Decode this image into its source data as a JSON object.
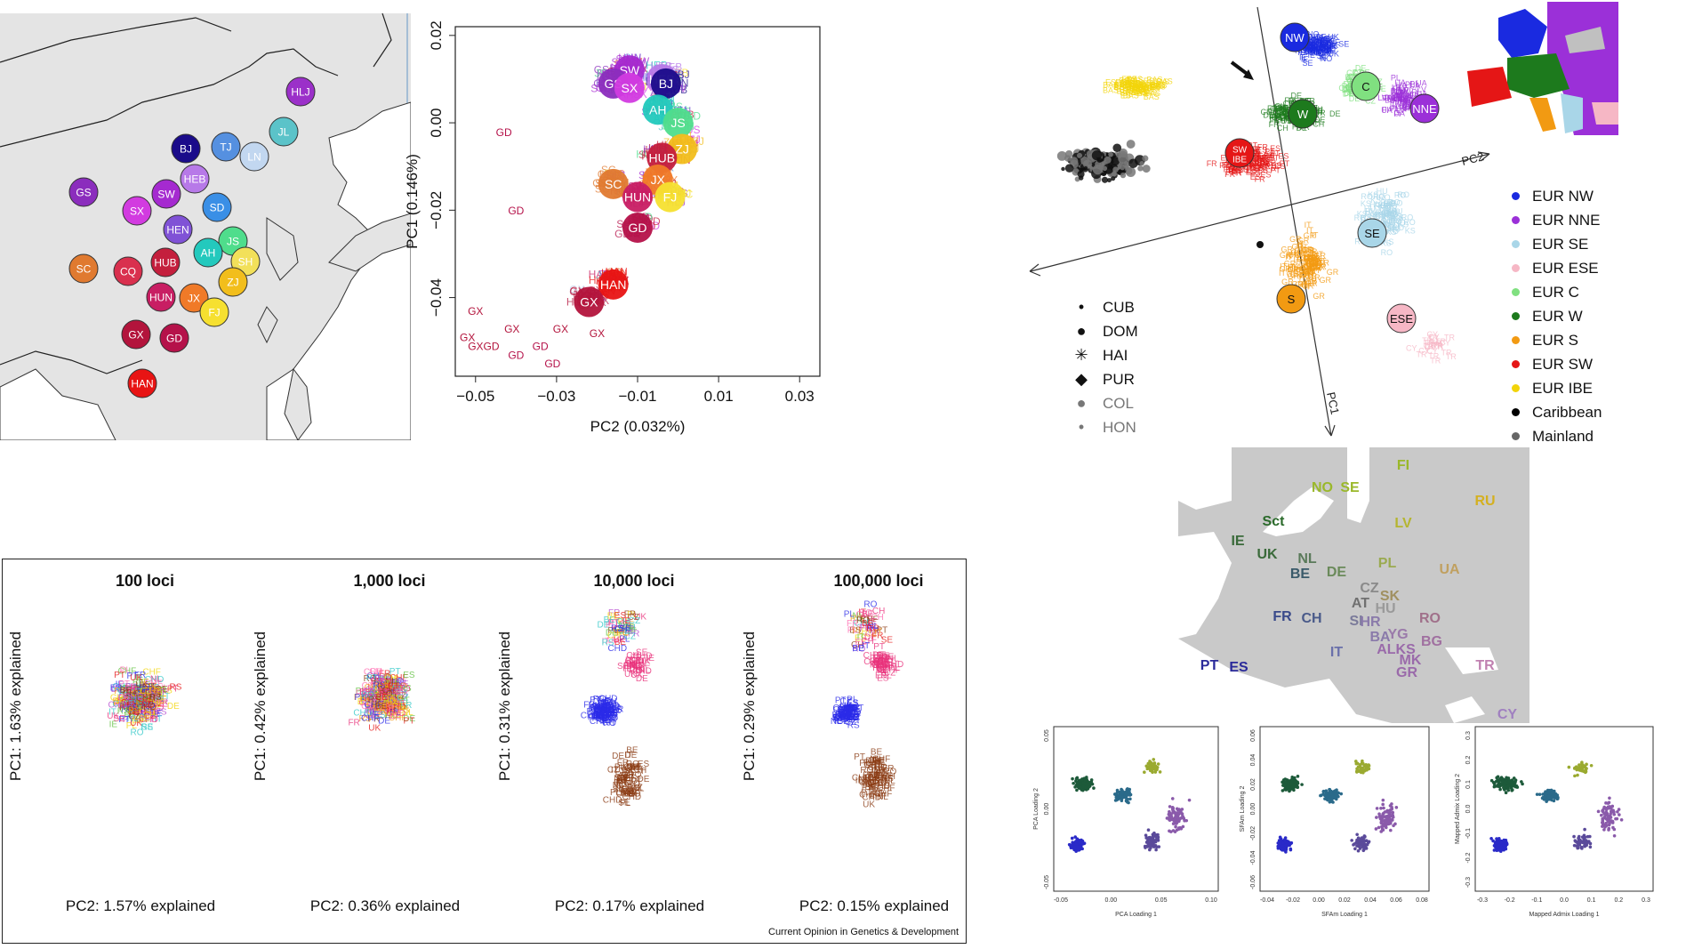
{
  "panels": {
    "china_map": {
      "provinces": [
        "HLJ",
        "JL",
        "TJ",
        "LN",
        "BJ",
        "HEB",
        "GS",
        "SW",
        "SX",
        "SD",
        "HEN",
        "JS",
        "AH",
        "SH",
        "SC",
        "CQ",
        "HUB",
        "ZJ",
        "JX",
        "HUN",
        "FJ",
        "GX",
        "GD",
        "HAN"
      ],
      "colors": {
        "HLJ": "#9b30c9",
        "JL": "#5bc3c9",
        "TJ": "#5590e0",
        "LN": "#c2d7f0",
        "BJ": "#1a0b8a",
        "HEB": "#b779e8",
        "GS": "#8b2dbd",
        "SW": "#a52ad0",
        "SX": "#d23be0",
        "SD": "#3a8fe6",
        "HEN": "#8052d6",
        "JS": "#4fdd8c",
        "AH": "#23c9bd",
        "SH": "#f2e05a",
        "SC": "#e07a30",
        "CQ": "#d9304e",
        "HUB": "#c41f3d",
        "ZJ": "#f2be1c",
        "JX": "#f07a28",
        "HUN": "#c81e63",
        "FJ": "#f6e030",
        "GX": "#b3143c",
        "GD": "#b5124a",
        "HAN": "#e81414"
      }
    },
    "china_pca": {
      "chart_data": {
        "type": "scatter",
        "xlabel": "PC2 (0.032%)",
        "ylabel": "PC1 (0.146%)",
        "xlim": [
          -0.055,
          0.035
        ],
        "ylim": [
          -0.058,
          0.022
        ],
        "xticks": [
          "−0.05",
          "−0.03",
          "−0.01",
          "0.01",
          "0.03"
        ],
        "xtick_values": [
          -0.05,
          -0.03,
          -0.01,
          0.01,
          0.03
        ],
        "yticks": [
          "0.02",
          "0.00",
          "−0.02",
          "−0.04"
        ],
        "ytick_values": [
          0.02,
          0.0,
          -0.02,
          -0.04
        ],
        "centroids": [
          {
            "label": "SW",
            "x": -0.012,
            "y": 0.012
          },
          {
            "label": "GS",
            "x": -0.016,
            "y": 0.009
          },
          {
            "label": "SX",
            "x": -0.012,
            "y": 0.008
          },
          {
            "label": "HEB",
            "x": -0.004,
            "y": 0.01
          },
          {
            "label": "BJ",
            "x": -0.003,
            "y": 0.009
          },
          {
            "label": "AH",
            "x": -0.005,
            "y": 0.003
          },
          {
            "label": "JS",
            "x": 0.0,
            "y": 0.0
          },
          {
            "label": "ZJ",
            "x": 0.001,
            "y": -0.006
          },
          {
            "label": "HUB",
            "x": -0.004,
            "y": -0.008
          },
          {
            "label": "JX",
            "x": -0.005,
            "y": -0.013
          },
          {
            "label": "SC",
            "x": -0.016,
            "y": -0.014
          },
          {
            "label": "HUN",
            "x": -0.01,
            "y": -0.017
          },
          {
            "label": "FJ",
            "x": -0.002,
            "y": -0.017
          },
          {
            "label": "GD",
            "x": -0.01,
            "y": -0.024
          },
          {
            "label": "HAN",
            "x": -0.016,
            "y": -0.037
          },
          {
            "label": "GX",
            "x": -0.022,
            "y": -0.041
          }
        ],
        "scatter_labels": [
          "SW",
          "SX",
          "GS",
          "LI",
          "HEN",
          "HLJ",
          "JL",
          "LN",
          "TJ",
          "SD",
          "JS",
          "SH",
          "ZJ",
          "AH",
          "SC",
          "HUB",
          "JX",
          "HUN",
          "GD",
          "GX",
          "CQ",
          "FJ"
        ],
        "extra_points": [
          {
            "label": "GD",
            "x": -0.043,
            "y": -0.003
          },
          {
            "label": "GD",
            "x": -0.04,
            "y": -0.021
          },
          {
            "label": "GX",
            "x": -0.05,
            "y": -0.044
          },
          {
            "label": "GX",
            "x": -0.052,
            "y": -0.05
          },
          {
            "label": "GXGD",
            "x": -0.048,
            "y": -0.052
          },
          {
            "label": "GD",
            "x": -0.04,
            "y": -0.054
          },
          {
            "label": "GD",
            "x": -0.031,
            "y": -0.056
          },
          {
            "label": "GX",
            "x": -0.041,
            "y": -0.048
          },
          {
            "label": "GD",
            "x": -0.034,
            "y": -0.052
          },
          {
            "label": "GX",
            "x": -0.029,
            "y": -0.048
          },
          {
            "label": "GX",
            "x": -0.02,
            "y": -0.049
          }
        ]
      }
    },
    "europe_pca": {
      "axis_pc1": "PC1",
      "axis_pc2": "PC2",
      "clusters": [
        {
          "label": "NW",
          "color": "#1a2ae0"
        },
        {
          "label": "NNE",
          "color": "#9b30d8"
        },
        {
          "label": "C",
          "color": "#80e080"
        },
        {
          "label": "W",
          "color": "#1d7a1d"
        },
        {
          "label": "SW\nIBE",
          "color": "#e51616"
        },
        {
          "label": "SE",
          "color": "#a9d6e8"
        },
        {
          "label": "S",
          "color": "#f29a12"
        },
        {
          "label": "ESE",
          "color": "#f6b7c5"
        }
      ],
      "scatter_labels": [
        "UK",
        "IE",
        "NO",
        "SE",
        "FI",
        "PL",
        "LV",
        "DE",
        "FR",
        "ES",
        "IT",
        "PT",
        "BAS",
        "CZ",
        "HU",
        "UA",
        "RO",
        "GR",
        "TR",
        "CY",
        "KS",
        "CH"
      ],
      "legend": [
        {
          "label": "EUR NW",
          "color": "#1a2ae0"
        },
        {
          "label": "EUR NNE",
          "color": "#9b30d8"
        },
        {
          "label": "EUR SE",
          "color": "#a9d6e8"
        },
        {
          "label": "EUR ESE",
          "color": "#f6b7c5"
        },
        {
          "label": "EUR C",
          "color": "#80e080"
        },
        {
          "label": "EUR W",
          "color": "#1d7a1d"
        },
        {
          "label": "EUR S",
          "color": "#f29a12"
        },
        {
          "label": "EUR SW",
          "color": "#e51616"
        },
        {
          "label": "EUR IBE",
          "color": "#f2d40a"
        },
        {
          "label": "Caribbean",
          "color": "#000000"
        },
        {
          "label": "Mainland",
          "color": "#666666"
        }
      ],
      "symbol_legend": [
        {
          "symbol": "•",
          "label": "CUB",
          "color": "#111"
        },
        {
          "symbol": "●",
          "label": "DOM",
          "color": "#111"
        },
        {
          "symbol": "✳",
          "label": "HAI",
          "color": "#111"
        },
        {
          "symbol": "◆",
          "label": "PUR",
          "color": "#111"
        },
        {
          "symbol": "●",
          "label": "COL",
          "color": "#777"
        },
        {
          "symbol": "•",
          "label": "HON",
          "color": "#777"
        }
      ]
    },
    "europe_map": {
      "labels": [
        {
          "code": "FI",
          "color": "#9ab82a"
        },
        {
          "code": "NO",
          "color": "#9ab82a"
        },
        {
          "code": "SE",
          "color": "#9ab82a"
        },
        {
          "code": "RU",
          "color": "#d4b020"
        },
        {
          "code": "LV",
          "color": "#b5b530"
        },
        {
          "code": "Sct",
          "color": "#2a6a2a"
        },
        {
          "code": "IE",
          "color": "#3a6a3a"
        },
        {
          "code": "UK",
          "color": "#3a6a3a"
        },
        {
          "code": "NL",
          "color": "#5a7a5a"
        },
        {
          "code": "BE",
          "color": "#3a5a6a"
        },
        {
          "code": "DE",
          "color": "#6a8a5a"
        },
        {
          "code": "PL",
          "color": "#9aaa50"
        },
        {
          "code": "UA",
          "color": "#c0a060"
        },
        {
          "code": "CZ",
          "color": "#8a8a8a"
        },
        {
          "code": "SK",
          "color": "#a09060"
        },
        {
          "code": "AT",
          "color": "#707070"
        },
        {
          "code": "HU",
          "color": "#9a9a9a"
        },
        {
          "code": "FR",
          "color": "#3a4a8a"
        },
        {
          "code": "CH",
          "color": "#4a5a8a"
        },
        {
          "code": "SI",
          "color": "#7a7a9a"
        },
        {
          "code": "HR",
          "color": "#8a7aaa"
        },
        {
          "code": "RO",
          "color": "#a0708a"
        },
        {
          "code": "BA",
          "color": "#8a7aaa"
        },
        {
          "code": "YG",
          "color": "#9a7aaa"
        },
        {
          "code": "BG",
          "color": "#a070a0"
        },
        {
          "code": "ALKS",
          "color": "#9a6aaa"
        },
        {
          "code": "MK",
          "color": "#9a6aaa"
        },
        {
          "code": "GR",
          "color": "#9a6aaa"
        },
        {
          "code": "IT",
          "color": "#6a70aa"
        },
        {
          "code": "PT",
          "color": "#2a2a9a"
        },
        {
          "code": "ES",
          "color": "#2a2a9a"
        },
        {
          "code": "TR",
          "color": "#c080b0"
        },
        {
          "code": "CY",
          "color": "#a080c0"
        }
      ]
    },
    "loci_panels": {
      "items": [
        {
          "title": "100 loci",
          "pc1": "PC1: 1.63% explained",
          "pc2": "PC2: 1.57% explained"
        },
        {
          "title": "1,000 loci",
          "pc1": "PC1: 0.42% explained",
          "pc2": "PC2: 0.36% explained"
        },
        {
          "title": "10,000 loci",
          "pc1": "PC1: 0.31% explained",
          "pc2": "PC2: 0.17% explained"
        },
        {
          "title": "100,000 loci",
          "pc1": "PC1: 0.29% explained",
          "pc2": "PC2: 0.15% explained"
        }
      ],
      "credit": "Current Opinion in Genetics & Development",
      "labels": [
        "ES",
        "IT",
        "PT",
        "FR",
        "DE",
        "UK",
        "IE",
        "CH",
        "CHF",
        "CHD",
        "NL",
        "SE",
        "RO",
        "BE",
        "CZ",
        "RS",
        "PL"
      ]
    },
    "loading_plots": {
      "items": [
        {
          "xlabel": "PCA Loading 1",
          "ylabel": "PCA Loading 2",
          "xticks": [
            "-0.05",
            "0.00",
            "0.05",
            "0.10"
          ],
          "yticks": [
            "0.05",
            "0.00",
            "-0.05"
          ]
        },
        {
          "xlabel": "SFAm Loading 1",
          "ylabel": "SFAm Loading 2",
          "xticks": [
            "-0.04",
            "-0.02",
            "0.00",
            "0.02",
            "0.04",
            "0.06",
            "0.08"
          ],
          "yticks": [
            "0.06",
            "0.04",
            "0.02",
            "0.00",
            "-0.02",
            "-0.04",
            "-0.06"
          ]
        },
        {
          "xlabel": "Mapped Admix Loading 1",
          "ylabel": "Mapped Admix Loading 2",
          "xticks": [
            "-0.3",
            "-0.2",
            "-0.1",
            "0.0",
            "0.1",
            "0.2",
            "0.3"
          ],
          "yticks": [
            "0.3",
            "0.2",
            "0.1",
            "0.0",
            "-0.1",
            "-0.2",
            "-0.3"
          ]
        }
      ]
    }
  }
}
